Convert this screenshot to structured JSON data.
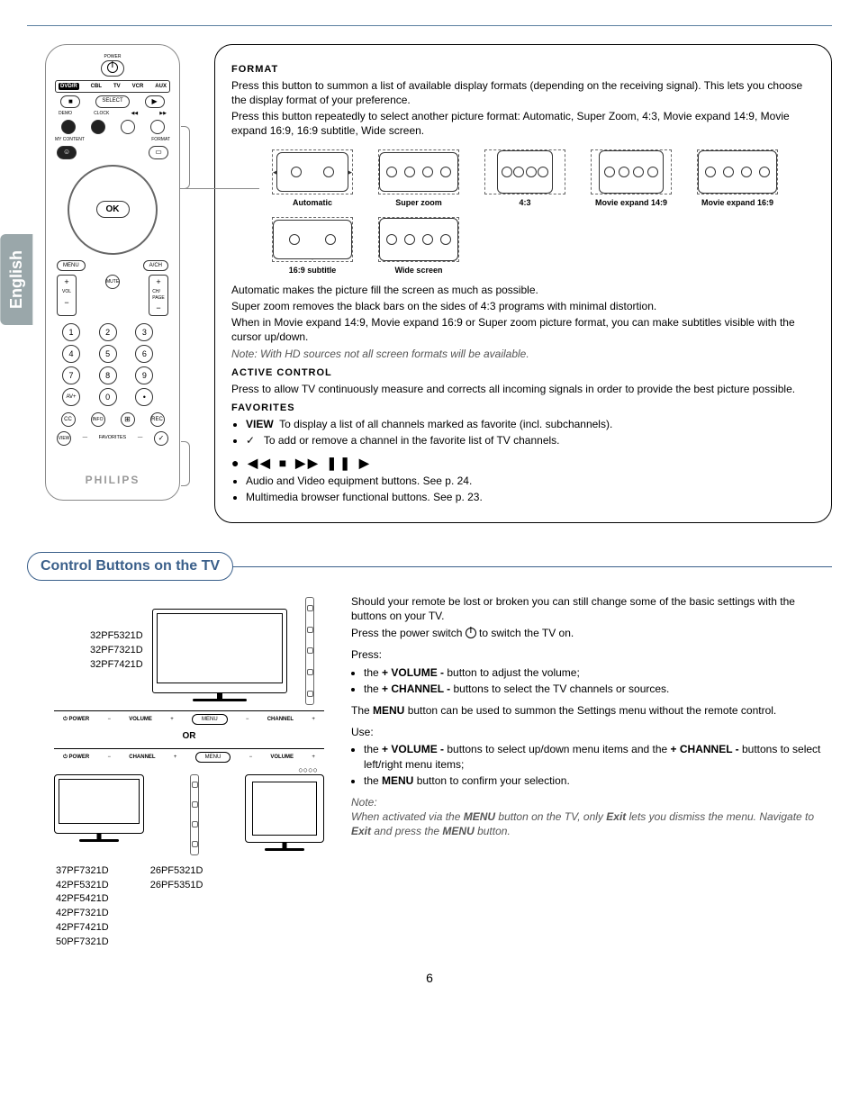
{
  "language_tab": "English",
  "page_number": "6",
  "remote": {
    "power_label": "POWER",
    "modes": [
      "DVD/R",
      "CBL",
      "TV",
      "VCR",
      "AUX"
    ],
    "select": "SELECT",
    "demo": "DEMO",
    "clock": "CLOCK",
    "mycontent": "MY CONTENT",
    "format": "FORMAT",
    "ok": "OK",
    "menu": "MENU",
    "avin": "A/CH",
    "vol": "VOL",
    "mute": "MUTE",
    "ch": "CH/\nPAGE",
    "nums": [
      "1",
      "2",
      "3",
      "4",
      "5",
      "6",
      "7",
      "8",
      "9",
      "AV+",
      "0",
      "•"
    ],
    "bottom": [
      "CC",
      "INFO",
      "",
      "REC"
    ],
    "view": "VIEW",
    "favorites": "FAVORITES",
    "brand": "PHILIPS"
  },
  "format": {
    "heading": "FORMAT",
    "p1": "Press this button to summon a list of available display formats (depending on the receiving signal). This lets you choose the display format of your preference.",
    "p2": "Press this button repeatedly to select another picture format: Automatic, Super Zoom, 4:3, Movie expand 14:9, Movie expand 16:9, 16:9 subtitle, Wide screen.",
    "items": [
      {
        "label": "Automatic",
        "inner_w": 80,
        "inner_h": 44,
        "faces": 2,
        "arrows": [
          "up",
          "down",
          "left",
          "right"
        ]
      },
      {
        "label": "Super zoom",
        "inner_w": 88,
        "inner_h": 44,
        "faces": 4,
        "arrows": [
          "up",
          "down"
        ]
      },
      {
        "label": "4:3",
        "inner_w": 62,
        "inner_h": 48,
        "faces": 4,
        "arrows": []
      },
      {
        "label": "Movie expand 14:9",
        "inner_w": 72,
        "inner_h": 48,
        "faces": 4,
        "arrows": [
          "up",
          "down"
        ]
      },
      {
        "label": "Movie expand 16:9",
        "inner_w": 88,
        "inner_h": 48,
        "faces": 4,
        "arrows": [
          "up",
          "down"
        ]
      },
      {
        "label": "16:9 subtitle",
        "inner_w": 88,
        "inner_h": 44,
        "faces": 2,
        "arrows": [
          "up",
          "down"
        ]
      },
      {
        "label": "Wide screen",
        "inner_w": 88,
        "inner_h": 48,
        "faces": 4,
        "arrows": []
      }
    ],
    "p3": "Automatic makes the picture fill the screen as much as possible.",
    "p4": "Super zoom removes the black bars on the sides of 4:3 programs with minimal distortion.",
    "p5": "When in Movie expand 14:9, Movie expand 16:9 or Super zoom picture format, you can make subtitles visible with the cursor up/down.",
    "note": "Note: With HD sources not all screen formats will be available."
  },
  "active_control": {
    "heading": "ACTIVE CONTROL",
    "p1": "Press to allow TV continuously measure and corrects all incoming signals in order to provide the best picture possible."
  },
  "favorites": {
    "heading": "FAVORITES",
    "b1_lead": "VIEW",
    "b1": "To display a list of all channels marked as favorite (incl. subchannels).",
    "b2": "To add or remove a channel in the favorite list of TV channels."
  },
  "av_buttons": {
    "symbols": "● ◀◀ ■ ▶▶ ❚❚ ▶",
    "b1": "Audio and Video equipment buttons. See p. 24.",
    "b2": "Multimedia browser functional buttons. See p. 23."
  },
  "section2_title": "Control Buttons on the TV",
  "tv": {
    "models_a": [
      "32PF5321D",
      "32PF7321D",
      "32PF7421D"
    ],
    "panel_labels": {
      "power": "POWER",
      "volume": "VOLUME",
      "menu": "MENU",
      "channel": "CHANNEL"
    },
    "or": "OR",
    "models_b": [
      "37PF7321D",
      "42PF5321D",
      "42PF5421D",
      "42PF7321D",
      "42PF7421D",
      "50PF7321D"
    ],
    "models_c": [
      "26PF5321D",
      "26PF5351D"
    ]
  },
  "lower_text": {
    "p1": "Should your remote be lost or broken you can still change some of the basic settings with the buttons on your TV.",
    "p2_a": "Press the power switch ",
    "p2_b": " to switch the TV on.",
    "press": "Press:",
    "li1_a": "the ",
    "li1_b": "+ VOLUME -",
    "li1_c": " button to adjust the volume;",
    "li2_a": "the ",
    "li2_b": "+ CHANNEL -",
    "li2_c": " buttons to select the TV channels or sources.",
    "p3_a": "The ",
    "p3_b": "MENU",
    "p3_c": " button can be used to summon the Settings menu without the remote control.",
    "use": "Use:",
    "li3_a": "the ",
    "li3_b": "+ VOLUME -",
    "li3_c": "  buttons to select up/down menu items and the ",
    "li3_d": "+ CHANNEL -",
    "li3_e": " buttons to select left/right menu items;",
    "li4_a": "the ",
    "li4_b": "MENU",
    "li4_c": " button to confirm your selection.",
    "note_label": "Note:",
    "note1_a": "When activated via the ",
    "note1_b": "MENU",
    "note1_c": " button on the TV, only ",
    "note1_d": "Exit",
    "note1_e": " lets you dismiss the menu. Navigate to ",
    "note1_f": "Exit",
    "note1_g": " and press the ",
    "note1_h": "MENU",
    "note1_i": " button."
  }
}
